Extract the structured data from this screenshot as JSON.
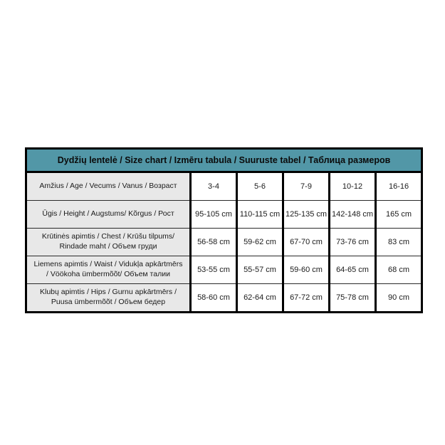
{
  "chart_data": {
    "type": "table",
    "title": "Dydžių lentelė / Size chart / Izmēru tabula / Suuruste tabel / Таблица размеров",
    "rows": [
      {
        "label": "Amžius / Age / Vecums / Vanus / Возраст",
        "values": [
          "3-4",
          "5-6",
          "7-9",
          "10-12",
          "16-16"
        ]
      },
      {
        "label": "Ūgis / Height / Augstums/ Kõrgus / Рост",
        "values": [
          "95-105 cm",
          "110-115 cm",
          "125-135 cm",
          "142-148 cm",
          "165 cm"
        ]
      },
      {
        "label": "Krūtinės apimtis / Chest / Krūšu tilpums/ Rindade maht / Объем груди",
        "values": [
          "56-58 cm",
          "59-62 cm",
          "67-70 cm",
          "73-76 cm",
          "83 cm"
        ]
      },
      {
        "label": "Liemens apimtis / Waist / Vidukļa apkārtmērs / Vöökoha ümbermõõt/ Объем талии",
        "values": [
          "53-55 cm",
          "55-57 cm",
          "59-60 cm",
          "64-65 cm",
          "68 cm"
        ]
      },
      {
        "label": "Klubų apimtis / Hips / Gurnu apkārtmērs / Puusa ümbermõõt / Объем бедер",
        "values": [
          "58-60 cm",
          "62-64 cm",
          "67-72 cm",
          "75-78 cm",
          "90 cm"
        ]
      }
    ],
    "colors": {
      "header_bg": "#5297a7",
      "label_bg": "#e8e8e8",
      "border": "#000000",
      "background": "#ffffff"
    },
    "layout": {
      "columns": 6,
      "value_columns": 5,
      "legend_position": "none",
      "grid": "on"
    }
  }
}
